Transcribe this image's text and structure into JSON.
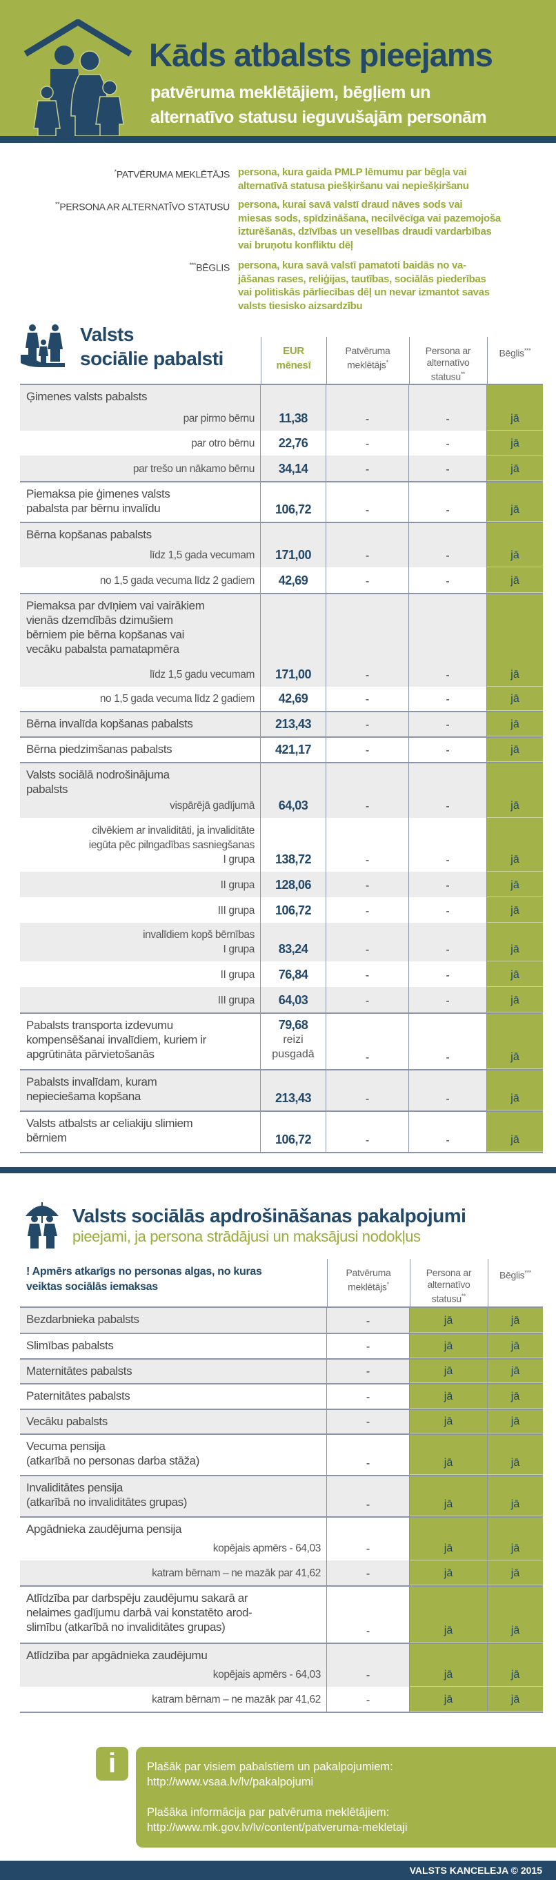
{
  "header": {
    "title": "Kāds atbalsts pieejams",
    "subtitle": "patvēruma meklētājiem, bēgļiem un\nalternatīvo statusu ieguvušajām personām"
  },
  "definitions": [
    {
      "sup": "*",
      "label": "PATVĒRUMA MEKLĒTĀJS",
      "text": "persona, kura gaida PMLP lēmumu par bēgļa vai\nalternatīvā statusa piešķiršanu vai nepiešķiršanu"
    },
    {
      "sup": "**",
      "label": "PERSONA AR ALTERNATĪVO STATUSU",
      "text": "persona, kurai savā valstī draud nāves sods vai\nmiesas sods, spīdzināšana, necilvēcīga vai pazemojoša\nizturēšanās, dzīvības un veselības draudi vardarbības\nvai bruņotu konfliktu dēļ"
    },
    {
      "sup": "***",
      "label": "BĒGLIS",
      "text": "persona, kura savā valstī pamatoti baidās no va-\njāšanas rases, reliģijas, tautības, sociālās piederības\nvai politiskās pārliecības dēļ un nevar izmantot savas\nvalsts tiesisko aizsardzību"
    }
  ],
  "colors": {
    "green": "#a3b34a",
    "navy": "#234868"
  },
  "social": {
    "title": "Valsts\nsociālie pabalsti",
    "icon": "family-hand-icon",
    "columns": [
      {
        "text": "EUR\nmēnesī",
        "sup": ""
      },
      {
        "text": "Patvēruma\nmeklētājs",
        "sup": "*"
      },
      {
        "text": "Persona ar\nalternatīvo\nstatusu",
        "sup": "**"
      },
      {
        "text": "Bēglis",
        "sup": "***"
      }
    ],
    "rows": [
      {
        "main": "Ģimenes valsts pabalsts",
        "sub": "par pirmo bērnu",
        "eur": "11,38",
        "c1": "-",
        "c2": "-",
        "c3": "jā"
      },
      {
        "sub": "par otro bērnu",
        "eur": "22,76",
        "c1": "-",
        "c2": "-",
        "c3": "jā"
      },
      {
        "sub": "par trešo un nākamo bērnu",
        "eur": "34,14",
        "c1": "-",
        "c2": "-",
        "c3": "jā"
      },
      {
        "main": "Piemaksa pie ģimenes valsts\npabalsta par bērnu invalīdu",
        "eur": "106,72",
        "c1": "-",
        "c2": "-",
        "c3": "jā"
      },
      {
        "main": "Bērna kopšanas pabalsts",
        "sub": "līdz 1,5 gada vecumam",
        "eur": "171,00",
        "c1": "-",
        "c2": "-",
        "c3": "jā"
      },
      {
        "sub": "no 1,5 gada vecuma līdz 2 gadiem",
        "eur": "42,69",
        "c1": "-",
        "c2": "-",
        "c3": "jā"
      },
      {
        "main": "Piemaksa par dvīņiem vai vairākiem\nvienās dzemdībās dzimušiem\nbērniem pie bērna kopšanas vai\nvecāku pabalsta pamatapmēra",
        "sub": "līdz 1,5 gadu vecumam",
        "eur": "171,00",
        "c1": "-",
        "c2": "-",
        "c3": "jā"
      },
      {
        "sub": "no 1,5 gada vecuma līdz 2 gadiem",
        "eur": "42,69",
        "c1": "-",
        "c2": "-",
        "c3": "jā"
      },
      {
        "main": "Bērna invalīda kopšanas pabalsts",
        "eur": "213,43",
        "c1": "-",
        "c2": "-",
        "c3": "jā"
      },
      {
        "main": "Bērna piedzimšanas pabalsts",
        "eur": "421,17",
        "c1": "-",
        "c2": "-",
        "c3": "jā"
      },
      {
        "main": "Valsts sociālā nodrošinājuma\npabalsts",
        "sub": "vispārējā gadījumā",
        "eur": "64,03",
        "c1": "-",
        "c2": "-",
        "c3": "jā"
      },
      {
        "subnote": "cilvēkiem ar invaliditāti, ja invaliditāte\niegūta pēc pilngadības sasniegšanas",
        "sub": "I grupa",
        "eur": "138,72",
        "c1": "-",
        "c2": "-",
        "c3": "jā"
      },
      {
        "sub": "II grupa",
        "eur": "128,06",
        "c1": "-",
        "c2": "-",
        "c3": "jā"
      },
      {
        "sub": "III grupa",
        "eur": "106,72",
        "c1": "-",
        "c2": "-",
        "c3": "jā"
      },
      {
        "subnote": "invalīdiem kopš bērnības",
        "sub": "I grupa",
        "eur": "83,24",
        "c1": "-",
        "c2": "-",
        "c3": "jā"
      },
      {
        "sub": "II grupa",
        "eur": "76,84",
        "c1": "-",
        "c2": "-",
        "c3": "jā"
      },
      {
        "sub": "III grupa",
        "eur": "64,03",
        "c1": "-",
        "c2": "-",
        "c3": "jā"
      },
      {
        "main": "Pabalsts transporta izdevumu\nkompensēšanai invalīdiem, kuriem ir\napgrūtināta pārvietošanās",
        "eur": "79,68",
        "eur_note": "reizi\npusgadā",
        "c1": "-",
        "c2": "-",
        "c3": "jā"
      },
      {
        "main": "Pabalsts invalīdam, kuram\nnepieciešama kopšana",
        "eur": "213,43",
        "c1": "-",
        "c2": "-",
        "c3": "jā"
      },
      {
        "main": "Valsts atbalsts ar celiakiju slimiem\nbērniem",
        "eur": "106,72",
        "c1": "-",
        "c2": "-",
        "c3": "jā"
      }
    ]
  },
  "insurance": {
    "title": "Valsts sociālās apdrošināšanas pakalpojumi",
    "subtitle": "pieejami, ja persona strādājusi un maksājusi nodokļus",
    "icon": "umbrella-family-icon",
    "note": "! Apmērs atkarīgs no personas algas, no kuras\nveiktas sociālās iemaksas",
    "columns": [
      {
        "text": "Patvēruma\nmeklētājs",
        "sup": "*"
      },
      {
        "text": "Persona ar\nalternatīvo\nstatusu",
        "sup": "**"
      },
      {
        "text": "Bēglis",
        "sup": "***"
      }
    ],
    "rows": [
      {
        "main": "Bezdarbnieka pabalsts",
        "c1": "-",
        "c2": "jā",
        "c3": "jā"
      },
      {
        "main": "Slimības pabalsts",
        "c1": "-",
        "c2": "jā",
        "c3": "jā"
      },
      {
        "main": "Maternitātes pabalsts",
        "c1": "-",
        "c2": "jā",
        "c3": "jā"
      },
      {
        "main": "Paternitātes pabalsts",
        "c1": "-",
        "c2": "jā",
        "c3": "jā"
      },
      {
        "main": "Vecāku pabalsts",
        "c1": "-",
        "c2": "jā",
        "c3": "jā"
      },
      {
        "main": "Vecuma pensija\n(atkarībā no personas darba stāža)",
        "c1": "-",
        "c2": "jā",
        "c3": "jā"
      },
      {
        "main": "Invaliditātes pensija\n(atkarībā no invaliditātes grupas)",
        "c1": "-",
        "c2": "jā",
        "c3": "jā"
      },
      {
        "main": "Apgādnieka zaudējuma pensija",
        "sub": "kopējais apmērs - 64,03",
        "c1": "-",
        "c2": "jā",
        "c3": "jā"
      },
      {
        "sub": "katram bērnam – ne mazāk par 41,62",
        "c1": "-",
        "c2": "jā",
        "c3": "jā"
      },
      {
        "main": "Atlīdzība par darbspēju zaudējumu sakarā ar\nnelaimes gadījumu darbā vai konstatēto arod-\nslimību (atkarībā no invaliditātes grupas)",
        "c1": "-",
        "c2": "jā",
        "c3": "jā"
      },
      {
        "main": "Atlīdzība par apgādnieka zaudējumu",
        "sub": "kopējais apmērs - 64,03",
        "c1": "-",
        "c2": "jā",
        "c3": "jā"
      },
      {
        "sub": "katram bērnam – ne mazāk par 41,62",
        "c1": "-",
        "c2": "jā",
        "c3": "jā"
      }
    ]
  },
  "info": {
    "icon": "info-icon",
    "line1": "Plašāk par visiem pabalstiem un pakalpojumiem:\nhttp://www.vsaa.lv/lv/pakalpojumi",
    "line2": "Plašāka informācija par patvēruma meklētājiem:\nhttp://www.mk.gov.lv/lv/content/patveruma-mekletaji"
  },
  "footer": {
    "text": "VALSTS KANCELEJA © 2015"
  }
}
